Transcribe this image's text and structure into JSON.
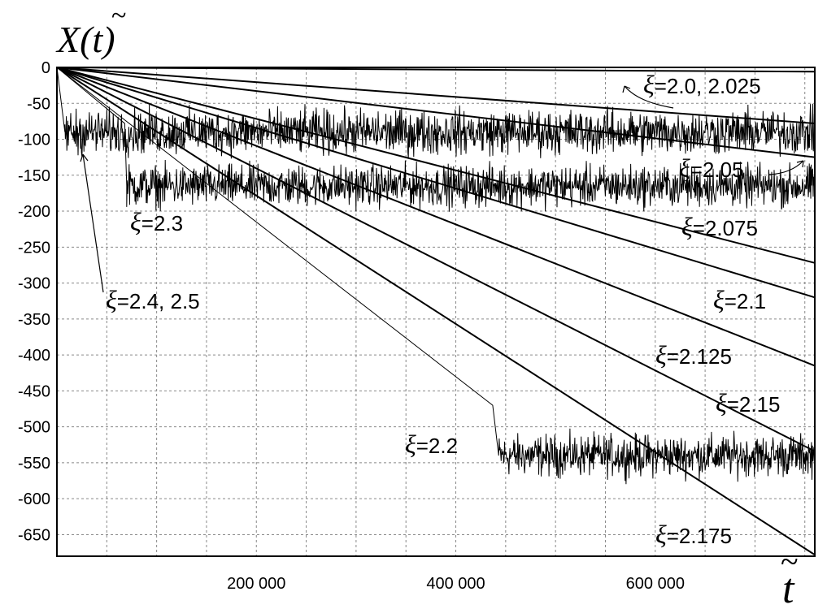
{
  "chart_data": {
    "type": "line",
    "title": "",
    "ylabel": "X(t̃)",
    "xlabel": "t̃",
    "xlim": [
      0,
      760000
    ],
    "ylim": [
      -680,
      0
    ],
    "yticks": [
      0,
      -50,
      -100,
      -150,
      -200,
      -250,
      -300,
      -350,
      -400,
      -450,
      -500,
      -550,
      -600,
      -650
    ],
    "xticks": [
      200000,
      400000,
      600000
    ],
    "ytick_labels": [
      "0",
      "-50",
      "-100",
      "-150",
      "-200",
      "-250",
      "-300",
      "-350",
      "-400",
      "-450",
      "-500",
      "-550",
      "-600",
      "-650"
    ],
    "xtick_labels": [
      "200 000",
      "400 000",
      "600 000"
    ],
    "grid": true,
    "grid_style": "dashed",
    "line_color": "#000000",
    "series": [
      {
        "xi": "2.0",
        "kind": "linear",
        "x": [
          0,
          760000
        ],
        "y": [
          0,
          -6
        ]
      },
      {
        "xi": "2.025",
        "kind": "linear",
        "x": [
          0,
          760000
        ],
        "y": [
          0,
          -78
        ]
      },
      {
        "xi": "2.05",
        "kind": "linear",
        "x": [
          0,
          760000
        ],
        "y": [
          0,
          -125
        ]
      },
      {
        "xi": "2.075",
        "kind": "linear",
        "x": [
          0,
          760000
        ],
        "y": [
          0,
          -272
        ]
      },
      {
        "xi": "2.1",
        "kind": "linear",
        "x": [
          0,
          760000
        ],
        "y": [
          0,
          -320
        ]
      },
      {
        "xi": "2.125",
        "kind": "linear",
        "x": [
          0,
          760000
        ],
        "y": [
          0,
          -415
        ]
      },
      {
        "xi": "2.15",
        "kind": "linear",
        "x": [
          0,
          760000
        ],
        "y": [
          0,
          -534
        ]
      },
      {
        "xi": "2.175",
        "kind": "linear",
        "x": [
          0,
          760000
        ],
        "y": [
          0,
          -678
        ]
      },
      {
        "xi": "2.2",
        "kind": "linear-then-noisy",
        "x": [
          0,
          437000,
          443000,
          760000
        ],
        "y": [
          0,
          -470,
          -540,
          -540
        ],
        "noise_amplitude": 14
      },
      {
        "xi": "2.3",
        "kind": "linear-then-noisy",
        "x": [
          0,
          68000,
          70000,
          760000
        ],
        "y": [
          0,
          -78,
          -165,
          -165
        ],
        "noise_amplitude": 14
      },
      {
        "xi": "2.4, 2.5",
        "kind": "noisy",
        "x": [
          0,
          8000,
          760000
        ],
        "y": [
          0,
          -90,
          -90
        ],
        "noise_amplitude": 15
      }
    ]
  },
  "labels": {
    "ylabel_main": "X(",
    "ylabel_var": "t",
    "ylabel_tilde": "~",
    "ylabel_close": ")",
    "xlabel_var": "t",
    "xlabel_tilde": "~",
    "xi_symbol": "ξ",
    "ann_2_0": "=2.0, 2.025",
    "ann_2_05": "=2.05",
    "ann_2_075": "=2.075",
    "ann_2_1": "=2.1",
    "ann_2_125": "=2.125",
    "ann_2_15": "=2.15",
    "ann_2_175": "=2.175",
    "ann_2_2": "=2.2",
    "ann_2_3": "=2.3",
    "ann_2_4": "=2.4, 2.5"
  }
}
